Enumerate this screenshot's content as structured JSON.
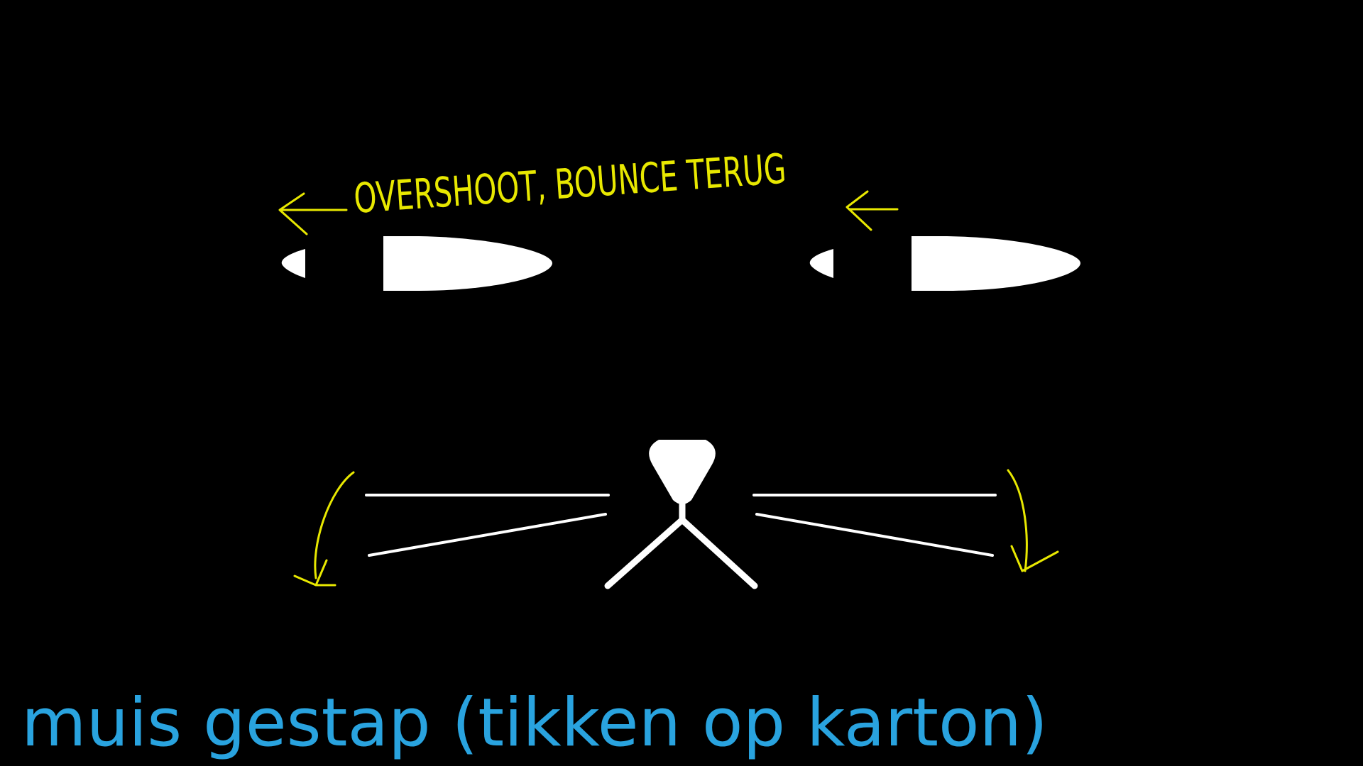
{
  "caption": "muis gestap (tikken op karton)",
  "annotation": "OVERSHOOT, BOUNCE TERUG",
  "colors": {
    "background": "#000000",
    "drawing": "#FFFFFF",
    "annotation": "#E8E800",
    "caption": "#29A3DF"
  },
  "icons": {
    "eyes": "eye-icon",
    "nose": "cat-nose-icon",
    "mouth": "cat-mouth-icon",
    "whiskers": "whisker-icon",
    "arrows": "arrow-icon"
  }
}
